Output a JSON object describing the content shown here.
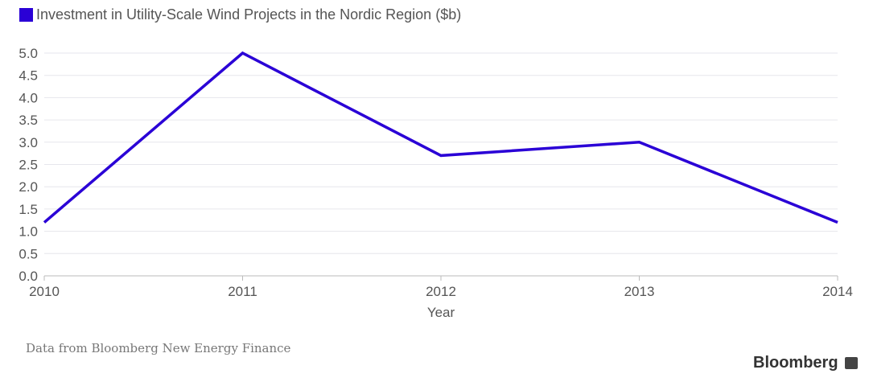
{
  "chart_data": {
    "type": "line",
    "title": "Investment in Utility-Scale Wind Projects in the Nordic Region ($b)",
    "xlabel": "Year",
    "ylabel": "",
    "x": [
      "2010",
      "2011",
      "2012",
      "2013",
      "2014"
    ],
    "series": [
      {
        "name": "Investment in Utility-Scale Wind Projects in the Nordic Region ($b)",
        "values": [
          1.2,
          5.0,
          2.7,
          3.0,
          1.2
        ],
        "color": "#2a00d6"
      }
    ],
    "ylim": [
      0,
      5
    ],
    "yticks": [
      "0.0",
      "0.5",
      "1.0",
      "1.5",
      "2.0",
      "2.5",
      "3.0",
      "3.5",
      "4.0",
      "4.5",
      "5.0"
    ],
    "grid": true,
    "legend": "top-left"
  },
  "source": "Data from Bloomberg New Energy Finance",
  "brand": "Bloomberg"
}
